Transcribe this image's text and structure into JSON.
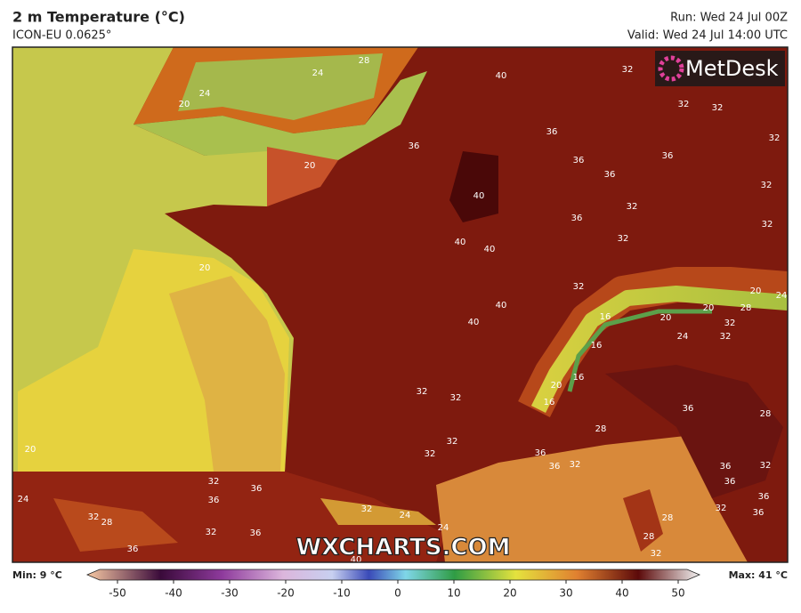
{
  "header": {
    "title": "2 m Temperature (°C)",
    "subtitle": "ICON-EU 0.0625°",
    "run": "Run: Wed 24 Jul 00Z",
    "valid": "Valid: Wed 24 Jul 14:00 UTC"
  },
  "logo": "MetDesk",
  "watermark": "WXCHARTS.COM",
  "contour_labels": [
    24,
    28,
    24,
    20,
    40,
    32,
    32,
    32,
    36,
    36,
    36,
    36,
    32,
    20,
    36,
    40,
    32,
    32,
    36,
    32,
    40,
    40,
    32,
    20,
    32,
    20,
    24,
    40,
    40,
    16,
    20,
    20,
    28,
    32,
    32,
    24,
    16,
    32,
    32,
    20,
    16,
    16,
    36,
    28,
    32,
    32,
    36,
    36,
    32,
    28,
    20,
    32,
    36,
    36,
    24,
    32,
    28,
    32,
    36,
    36,
    36,
    32,
    36,
    36,
    32,
    36,
    28,
    28,
    32,
    40,
    24,
    24,
    32
  ],
  "legend": {
    "min": "Min: 9 °C",
    "max": "Max: 41 °C",
    "lim": [
      -50,
      50
    ],
    "ticks": [
      -50,
      -40,
      -30,
      -20,
      -10,
      0,
      10,
      20,
      30,
      40,
      50
    ]
  }
}
